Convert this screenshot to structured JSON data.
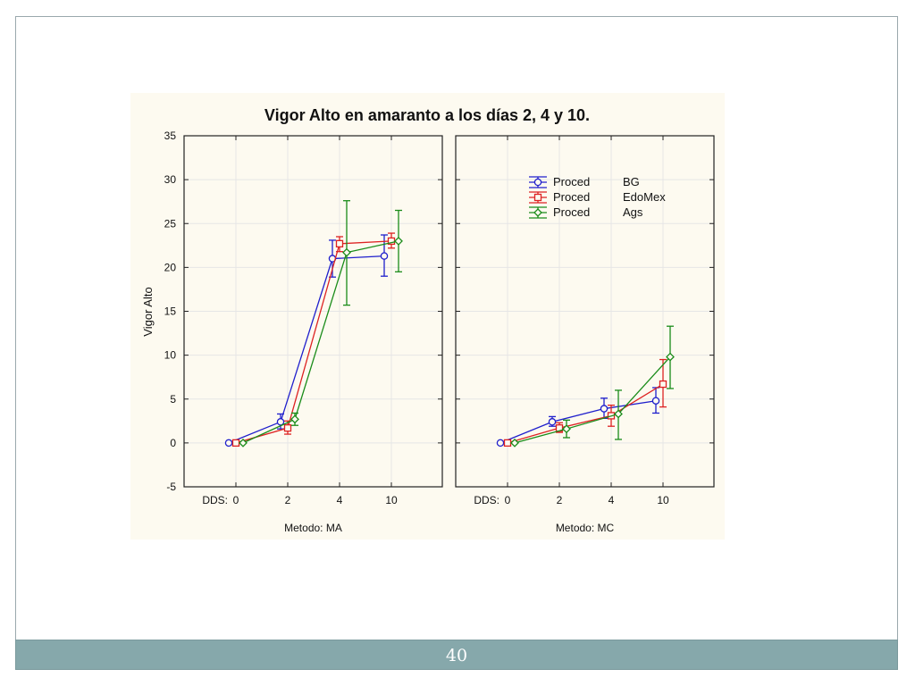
{
  "slide": {
    "page_number": "40"
  },
  "chart_data": {
    "type": "line",
    "title": "Vigor Alto en amaranto a los días 2, 4 y 10.",
    "ylabel": "Vigor Alto",
    "ylim": [
      -5,
      35
    ],
    "yticks": [
      "-5",
      "0",
      "5",
      "10",
      "15",
      "20",
      "25",
      "30",
      "35"
    ],
    "x_prefix": "DDS:",
    "categories": [
      "0",
      "2",
      "4",
      "10"
    ],
    "grid": true,
    "legend_position": "top-center of right panel",
    "legend": [
      {
        "label": "Proced",
        "value": "BG",
        "color": "#1f1fcc",
        "marker": "circle"
      },
      {
        "label": "Proced",
        "value": "EdoMex",
        "color": "#dd2222",
        "marker": "square"
      },
      {
        "label": "Proced",
        "value": "Ags",
        "color": "#1a8c1a",
        "marker": "diamond"
      }
    ],
    "panels": [
      {
        "label": "Metodo: MA",
        "series": [
          {
            "name": "BG",
            "values": [
              0,
              2.4,
              21.0,
              21.3
            ],
            "err_low": [
              0,
              1.6,
              18.9,
              19.0
            ],
            "err_high": [
              0,
              3.3,
              23.1,
              23.7
            ]
          },
          {
            "name": "EdoMex",
            "values": [
              0,
              1.7,
              22.7,
              23.0
            ],
            "err_low": [
              0,
              1.0,
              21.8,
              22.2
            ],
            "err_high": [
              0,
              2.5,
              23.5,
              23.9
            ]
          },
          {
            "name": "Ags",
            "values": [
              0,
              2.7,
              21.7,
              23.0
            ],
            "err_low": [
              0,
              2.0,
              15.7,
              19.5
            ],
            "err_high": [
              0,
              3.4,
              27.6,
              26.5
            ]
          }
        ]
      },
      {
        "label": "Metodo: MC",
        "series": [
          {
            "name": "BG",
            "values": [
              0,
              2.4,
              3.9,
              4.8
            ],
            "err_low": [
              0,
              1.9,
              2.8,
              3.4
            ],
            "err_high": [
              0,
              3.0,
              5.1,
              6.3
            ]
          },
          {
            "name": "EdoMex",
            "values": [
              0,
              1.7,
              3.1,
              6.7
            ],
            "err_low": [
              0,
              1.2,
              1.9,
              4.1
            ],
            "err_high": [
              0,
              2.3,
              4.3,
              9.5
            ]
          },
          {
            "name": "Ags",
            "values": [
              0,
              1.6,
              3.3,
              9.8
            ],
            "err_low": [
              0,
              0.6,
              0.4,
              6.2
            ],
            "err_high": [
              0,
              2.6,
              6.0,
              13.3
            ]
          }
        ]
      }
    ]
  }
}
